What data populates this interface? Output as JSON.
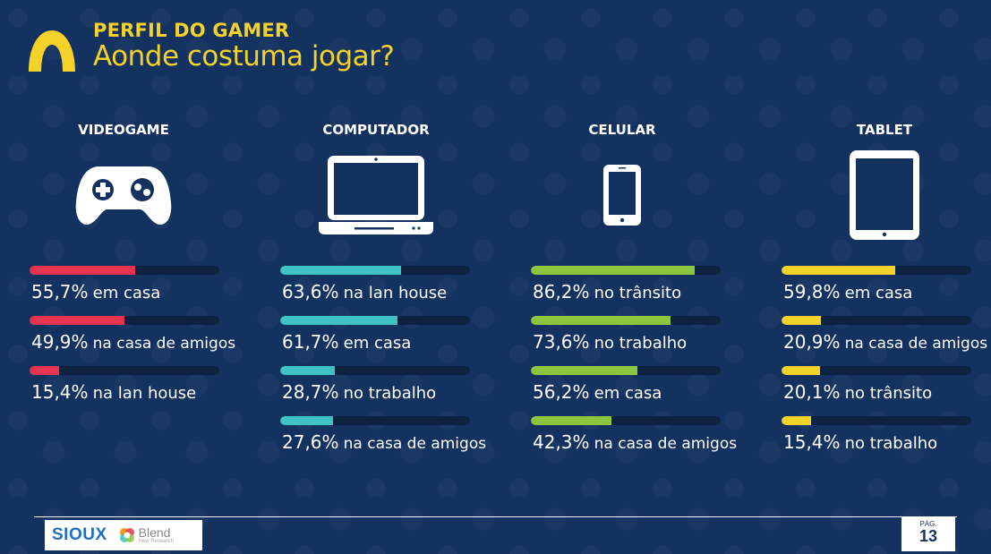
{
  "header": {
    "kicker": "PERFIL DO GAMER",
    "title": "Aonde costuma jogar?"
  },
  "colors": {
    "videogame": "#e8334f",
    "computador": "#3ec2c6",
    "celular": "#8cc63e",
    "tablet": "#f5d22a",
    "track": "#0c2240",
    "background": "#14325f"
  },
  "chart_data": [
    {
      "type": "bar",
      "title": "VIDEOGAME",
      "icon": "gamepad-icon",
      "categories": [
        "em casa",
        "na casa de amigos",
        "na lan house"
      ],
      "values": [
        55.7,
        49.9,
        15.4
      ],
      "labels": [
        "55,7%",
        "49,9%",
        "15,4%"
      ],
      "ylim": [
        0,
        100
      ]
    },
    {
      "type": "bar",
      "title": "COMPUTADOR",
      "icon": "laptop-icon",
      "categories": [
        "na lan house",
        "em casa",
        "no trabalho",
        "na casa de amigos"
      ],
      "values": [
        63.6,
        61.7,
        28.7,
        27.6
      ],
      "labels": [
        "63,6%",
        "61,7%",
        "28,7%",
        "27,6%"
      ],
      "ylim": [
        0,
        100
      ]
    },
    {
      "type": "bar",
      "title": "CELULAR",
      "icon": "smartphone-icon",
      "categories": [
        "no trânsito",
        "no trabalho",
        "em casa",
        "na casa de amigos"
      ],
      "values": [
        86.2,
        73.6,
        56.2,
        42.3
      ],
      "labels": [
        "86,2%",
        "73,6%",
        "56,2%",
        "42,3%"
      ],
      "ylim": [
        0,
        100
      ]
    },
    {
      "type": "bar",
      "title": "TABLET",
      "icon": "tablet-icon",
      "categories": [
        "em casa",
        "na casa de amigos",
        "no trânsito",
        "no trabalho"
      ],
      "values": [
        59.8,
        20.9,
        20.1,
        15.4
      ],
      "labels": [
        "59,8%",
        "20,9%",
        "20,1%",
        "15,4%"
      ],
      "ylim": [
        0,
        100
      ]
    }
  ],
  "footer": {
    "brand1": "SIOUX",
    "brand2": "Blend",
    "brand2_sub": "New Research",
    "page_label": "PÁG.",
    "page_number": "13"
  }
}
